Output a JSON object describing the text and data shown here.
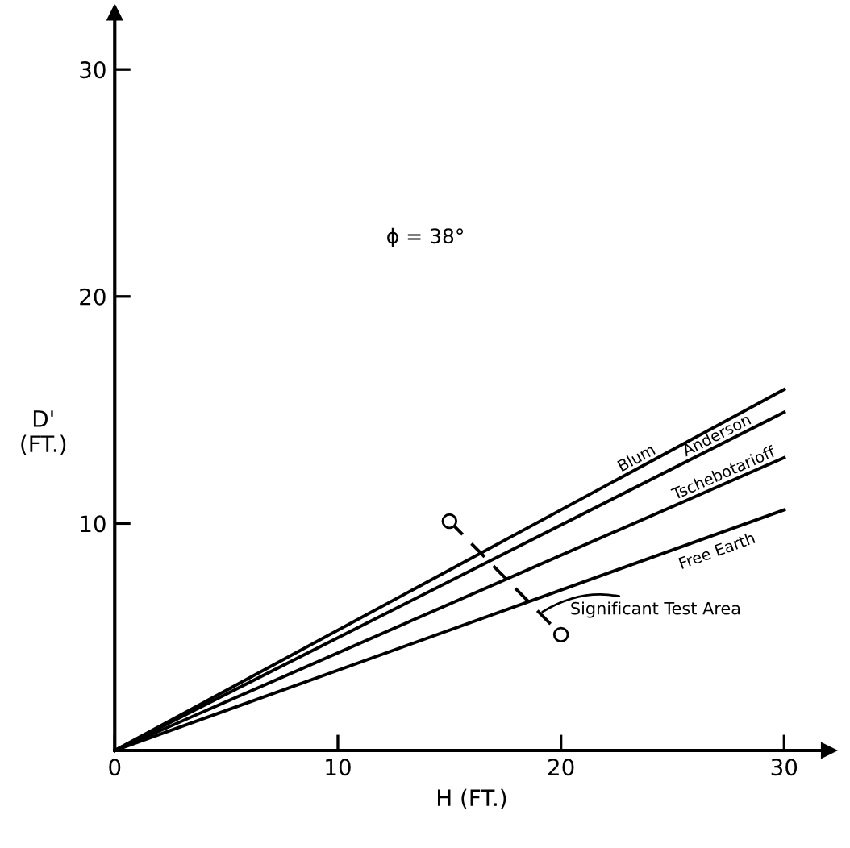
{
  "chart_data": {
    "type": "line",
    "xlabel": "H (FT.)",
    "ylabel": "D'\n(FT.)",
    "xlim": [
      0,
      32
    ],
    "ylim": [
      0,
      32.5
    ],
    "xticks": [
      0,
      10,
      20,
      30
    ],
    "yticks": [
      10,
      20,
      30
    ],
    "grid": false,
    "legend": false,
    "x": [
      0,
      30
    ],
    "series": [
      {
        "name": "Blum",
        "color": "#000000",
        "values": [
          0,
          15.9
        ]
      },
      {
        "name": "Anderson",
        "color": "#000000",
        "values": [
          0,
          14.9
        ]
      },
      {
        "name": "Tschebotarioff",
        "color": "#000000",
        "values": [
          0,
          12.9
        ]
      },
      {
        "name": "Free Earth",
        "color": "#000000",
        "values": [
          0,
          10.6
        ]
      },
      {
        "color": "#000000",
        "x": [
          15,
          20
        ],
        "values": [
          10.1,
          5.1
        ],
        "marker": "circle",
        "line_style": "dashed"
      }
    ],
    "annotations": [
      "ϕ = 38°",
      {
        "text": "Significant Test Area",
        "x": 19,
        "y": 6
      }
    ]
  }
}
